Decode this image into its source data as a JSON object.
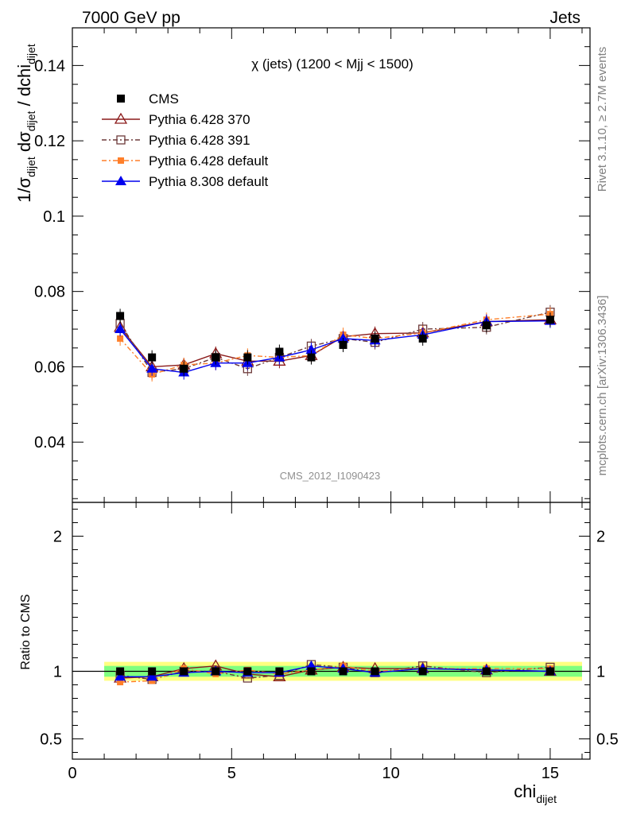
{
  "header": {
    "left": "7000 GeV pp",
    "right": "Jets"
  },
  "side_text": {
    "rivet": "Rivet 3.1.10, ≥ 2.7M events",
    "mcplots": "mcplots.cern.ch [arXiv:1306.3436]"
  },
  "chart_data": {
    "type": "scatter",
    "title": "χ (jets) (1200 < Mjj < 1500)",
    "analysis_label": "CMS_2012_I1090423",
    "xlabel": "chi",
    "xlabel_sub": "dijet",
    "ylabel": "1/σ_dijet dσ_dijet / dchi_dijet",
    "ratio_ylabel": "Ratio to CMS",
    "xlim": [
      0,
      16.25
    ],
    "ylim": [
      0.024,
      0.15
    ],
    "ratio_ylim": [
      0.35,
      2.25
    ],
    "x_ticks": [
      "0",
      "5",
      "10",
      "15"
    ],
    "y_ticks": [
      "0.04",
      "0.06",
      "0.08",
      "0.1",
      "0.12",
      "0.14"
    ],
    "ratio_ticks": [
      "0.5",
      "1",
      "2"
    ],
    "x": [
      1.5,
      2.5,
      3.5,
      4.5,
      5.5,
      6.5,
      7.5,
      8.5,
      9.5,
      11,
      13,
      15
    ],
    "series": [
      {
        "name": "CMS",
        "marker": "square-filled",
        "color": "#000000",
        "values": [
          0.0735,
          0.0625,
          0.0595,
          0.0625,
          0.0625,
          0.064,
          0.0625,
          0.0658,
          0.0675,
          0.0675,
          0.071,
          0.0725
        ],
        "ratio": [
          1,
          1,
          1,
          1,
          1,
          1,
          1,
          1,
          1,
          1,
          1,
          1
        ]
      },
      {
        "name": "Pythia 6.428 370",
        "marker": "triangle-open",
        "color": "#8b1a1a",
        "dash": "",
        "values": [
          0.0705,
          0.06,
          0.0605,
          0.0635,
          0.0615,
          0.0615,
          0.063,
          0.068,
          0.0688,
          0.069,
          0.072,
          0.0725
        ],
        "ratio": [
          0.95,
          0.96,
          1.02,
          1.04,
          0.98,
          0.96,
          1.01,
          1.03,
          1.02,
          1.02,
          1.01,
          1.0
        ]
      },
      {
        "name": "Pythia 6.428 391",
        "marker": "square-open",
        "color": "#6e3b3b",
        "dash": "6,3,2,3",
        "values": [
          0.0715,
          0.0585,
          0.0595,
          0.0625,
          0.0595,
          0.0625,
          0.0655,
          0.0675,
          0.0665,
          0.07,
          0.0705,
          0.0745
        ],
        "ratio": [
          0.97,
          0.94,
          1.0,
          1.0,
          0.95,
          0.97,
          1.05,
          1.03,
          0.99,
          1.04,
          0.99,
          1.03
        ]
      },
      {
        "name": "Pythia 6.428 default",
        "marker": "square-filled-small",
        "color": "#ff7f2a",
        "dash": "6,3,2,3",
        "values": [
          0.0675,
          0.058,
          0.0605,
          0.061,
          0.063,
          0.0625,
          0.063,
          0.0685,
          0.0675,
          0.069,
          0.0725,
          0.074
        ],
        "ratio": [
          0.92,
          0.93,
          1.02,
          0.98,
          1.01,
          0.98,
          1.01,
          1.04,
          1.0,
          1.02,
          1.02,
          1.02
        ]
      },
      {
        "name": "Pythia 8.308 default",
        "marker": "triangle-filled",
        "color": "#0000ee",
        "dash": "",
        "values": [
          0.07,
          0.0595,
          0.0585,
          0.061,
          0.061,
          0.0625,
          0.0645,
          0.0675,
          0.067,
          0.0685,
          0.072,
          0.0722
        ],
        "ratio": [
          0.96,
          0.96,
          0.99,
          1.0,
          0.99,
          0.99,
          1.04,
          1.02,
          0.99,
          1.02,
          1.01,
          1.0
        ]
      }
    ],
    "legend_placement": "top-left",
    "ratio_band": {
      "inner_color": "#7fff7f",
      "outer_color": "#ffff80"
    }
  }
}
